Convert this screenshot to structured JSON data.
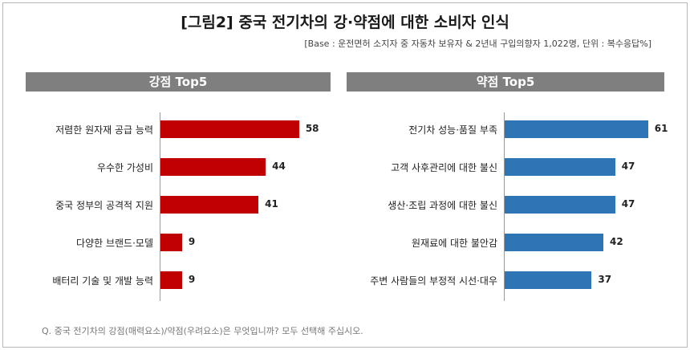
{
  "title": "[그림2] 중국 전기차의 강·약점에 대한 소비자 인식",
  "subtitle": "[Base : 운전면허 소지자 중 자동차 보유자 & 2년내 구입의향자 1,022명, 단위 : 복수응답%]",
  "footnote": "Q. 중국 전기차의 강점(매력요소)/약점(우려요소)은 무엇입니까? 모두 선택해 주십시오.",
  "colors": {
    "strength_bar": "#c00000",
    "weakness_bar": "#2e75b6",
    "panel_header": "#7f7f7f"
  },
  "chart_data": [
    {
      "type": "bar",
      "orientation": "horizontal",
      "title": "강점 Top5",
      "categories": [
        "저렴한 원자재 공급 능력",
        "우수한 가성비",
        "중국 정부의 공격적 지원",
        "다양한 브랜드·모델",
        "배터리 기술 및 개발 능력"
      ],
      "values": [
        58,
        44,
        41,
        9,
        9
      ],
      "xlim": [
        0,
        100
      ],
      "grid": false,
      "color": "#c00000"
    },
    {
      "type": "bar",
      "orientation": "horizontal",
      "title": "약점 Top5",
      "categories": [
        "전기차 성능·품질 부족",
        "고객 사후관리에 대한 불신",
        "생산·조립 과정에 대한 불신",
        "원재료에 대한 불안감",
        "주변 사람들의 부정적 시선·대우"
      ],
      "values": [
        61,
        47,
        47,
        42,
        37
      ],
      "xlim": [
        0,
        100
      ],
      "grid": false,
      "color": "#2e75b6"
    }
  ]
}
